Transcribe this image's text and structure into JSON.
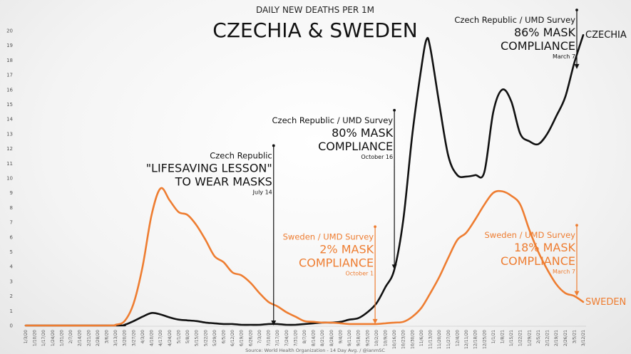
{
  "chart_data": {
    "type": "line",
    "subtitle": "DAILY NEW DEATHS PER 1M",
    "title": "CZECHIA & SWEDEN",
    "source": "Source: World Health Organization - 14 Day Avg. / @ianmSC",
    "ylim": [
      0,
      20
    ],
    "yticks": [
      0,
      1,
      2,
      3,
      4,
      5,
      6,
      7,
      8,
      9,
      10,
      11,
      12,
      13,
      14,
      15,
      16,
      17,
      18,
      19,
      20
    ],
    "grid": false,
    "x_labels": [
      "1/3/20",
      "1/10/20",
      "1/17/20",
      "1/24/20",
      "1/31/20",
      "2/7/20",
      "2/14/20",
      "2/21/20",
      "2/28/20",
      "3/6/20",
      "3/13/20",
      "3/20/20",
      "3/27/20",
      "4/3/20",
      "4/10/20",
      "4/17/20",
      "4/24/20",
      "5/1/20",
      "5/8/20",
      "5/15/20",
      "5/22/20",
      "5/29/20",
      "6/5/20",
      "6/12/20",
      "6/19/20",
      "6/26/20",
      "7/3/20",
      "7/10/20",
      "7/17/20",
      "7/24/20",
      "7/31/20",
      "8/7/20",
      "8/14/20",
      "8/21/20",
      "8/28/20",
      "9/4/20",
      "9/11/20",
      "9/18/20",
      "9/25/20",
      "10/2/20",
      "10/9/20",
      "10/16/20",
      "10/23/20",
      "10/30/20",
      "11/6/20",
      "11/13/20",
      "11/20/20",
      "11/27/20",
      "12/4/20",
      "12/11/20",
      "12/18/20",
      "12/25/20",
      "1/1/21",
      "1/8/21",
      "1/15/21",
      "1/22/21",
      "1/29/21",
      "2/5/21",
      "2/12/21",
      "2/19/21",
      "2/26/21",
      "3/5/21",
      "3/12/21"
    ],
    "series": [
      {
        "name": "CZECHIA",
        "color": "#111111",
        "x": [
          "1/3/20",
          "3/13/20",
          "3/20/20",
          "3/27/20",
          "4/3/20",
          "4/10/20",
          "4/17/20",
          "4/24/20",
          "5/1/20",
          "5/8/20",
          "5/15/20",
          "5/22/20",
          "5/29/20",
          "6/5/20",
          "6/12/20",
          "6/19/20",
          "6/26/20",
          "7/3/20",
          "7/10/20",
          "7/17/20",
          "7/24/20",
          "7/31/20",
          "8/7/20",
          "8/14/20",
          "8/21/20",
          "8/28/20",
          "9/4/20",
          "9/11/20",
          "9/18/20",
          "9/25/20",
          "10/2/20",
          "10/9/20",
          "10/16/20",
          "10/23/20",
          "10/30/20",
          "11/6/20",
          "11/10/20",
          "11/13/20",
          "11/20/20",
          "11/27/20",
          "12/4/20",
          "12/11/20",
          "12/18/20",
          "12/25/20",
          "1/1/21",
          "1/8/21",
          "1/15/21",
          "1/22/21",
          "1/29/21",
          "2/5/21",
          "2/12/21",
          "2/19/21",
          "2/26/21",
          "3/5/21",
          "3/12/21"
        ],
        "y": [
          0,
          0,
          0.05,
          0.3,
          0.6,
          0.85,
          0.75,
          0.55,
          0.4,
          0.35,
          0.3,
          0.2,
          0.15,
          0.1,
          0.1,
          0.05,
          0.05,
          0.05,
          0.1,
          0.1,
          0.05,
          0.05,
          0.1,
          0.15,
          0.2,
          0.2,
          0.25,
          0.4,
          0.5,
          0.9,
          1.5,
          2.6,
          3.8,
          7.2,
          13,
          17.5,
          19.4,
          18.8,
          15,
          11.5,
          10.2,
          10.1,
          10.2,
          10.4,
          14.5,
          16,
          15.2,
          13,
          12.5,
          12.3,
          13,
          14.2,
          15.5,
          17.8,
          19.7
        ]
      },
      {
        "name": "SWEDEN",
        "color": "#ee7d31",
        "x": [
          "1/3/20",
          "3/6/20",
          "3/13/20",
          "3/20/20",
          "3/27/20",
          "4/3/20",
          "4/10/20",
          "4/17/20",
          "4/24/20",
          "5/1/20",
          "5/8/20",
          "5/15/20",
          "5/22/20",
          "5/29/20",
          "6/5/20",
          "6/12/20",
          "6/19/20",
          "6/26/20",
          "7/3/20",
          "7/10/20",
          "7/17/20",
          "7/24/20",
          "7/31/20",
          "8/7/20",
          "8/14/20",
          "8/21/20",
          "8/28/20",
          "9/4/20",
          "9/11/20",
          "9/18/20",
          "9/25/20",
          "10/2/20",
          "10/9/20",
          "10/16/20",
          "10/23/20",
          "10/30/20",
          "11/6/20",
          "11/13/20",
          "11/20/20",
          "11/27/20",
          "12/4/20",
          "12/11/20",
          "12/18/20",
          "12/25/20",
          "1/1/21",
          "1/8/21",
          "1/15/21",
          "1/22/21",
          "1/29/21",
          "2/5/21",
          "2/12/21",
          "2/19/21",
          "2/26/21",
          "3/5/21",
          "3/12/21"
        ],
        "y": [
          0,
          0,
          0.05,
          0.3,
          1.5,
          4,
          7.5,
          9.3,
          8.5,
          7.7,
          7.5,
          6.8,
          5.8,
          4.7,
          4.3,
          3.6,
          3.4,
          2.9,
          2.2,
          1.6,
          1.3,
          0.9,
          0.6,
          0.3,
          0.25,
          0.2,
          0.2,
          0.15,
          0.1,
          0.1,
          0.1,
          0.1,
          0.15,
          0.2,
          0.25,
          0.6,
          1.2,
          2.2,
          3.3,
          4.6,
          5.8,
          6.3,
          7.2,
          8.2,
          9,
          9.1,
          8.8,
          8.2,
          6.5,
          5,
          3.8,
          2.8,
          2.2,
          2,
          1.6
        ]
      }
    ],
    "annotations": [
      {
        "id": "czech-lesson",
        "color": "#111111",
        "date": "7/14/20",
        "y_top": 12.2,
        "y_bottom": 0,
        "lines": [
          {
            "text": "Czech Republic",
            "size": "small"
          },
          {
            "text": "\"LIFESAVING LESSON\"",
            "size": "large"
          },
          {
            "text": "TO WEAR MASKS",
            "size": "large"
          },
          {
            "text": "July 14",
            "size": "tiny"
          }
        ]
      },
      {
        "id": "czech-80",
        "color": "#111111",
        "date": "10/16/20",
        "y_top": 14.6,
        "y_bottom": 3.8,
        "lines": [
          {
            "text": "Czech Republic / UMD Survey",
            "size": "small"
          },
          {
            "text": "80% MASK",
            "size": "large"
          },
          {
            "text": "COMPLIANCE",
            "size": "large"
          },
          {
            "text": "October 16",
            "size": "tiny"
          }
        ]
      },
      {
        "id": "czech-86",
        "color": "#111111",
        "date": "3/7/21",
        "y_top": 21.4,
        "y_bottom": 17.4,
        "lines": [
          {
            "text": "Czech Republic / UMD Survey",
            "size": "small"
          },
          {
            "text": "86% MASK",
            "size": "large"
          },
          {
            "text": "COMPLIANCE",
            "size": "large"
          },
          {
            "text": "March 7",
            "size": "tiny"
          }
        ]
      },
      {
        "id": "sweden-2",
        "color": "#ee7d31",
        "date": "10/1/20",
        "y_top": 6.7,
        "y_bottom": 0.1,
        "lines": [
          {
            "text": "Sweden / UMD Survey",
            "size": "small"
          },
          {
            "text": "2% MASK",
            "size": "large"
          },
          {
            "text": "COMPLIANCE",
            "size": "large"
          },
          {
            "text": "October 1",
            "size": "tiny"
          }
        ]
      },
      {
        "id": "sweden-18",
        "color": "#ee7d31",
        "date": "3/7/21",
        "y_top": 6.8,
        "y_bottom": 2,
        "lines": [
          {
            "text": "Sweden / UMD Survey",
            "size": "small"
          },
          {
            "text": "18% MASK",
            "size": "large"
          },
          {
            "text": "COMPLIANCE",
            "size": "large"
          },
          {
            "text": "March 7",
            "size": "tiny"
          }
        ]
      }
    ]
  }
}
